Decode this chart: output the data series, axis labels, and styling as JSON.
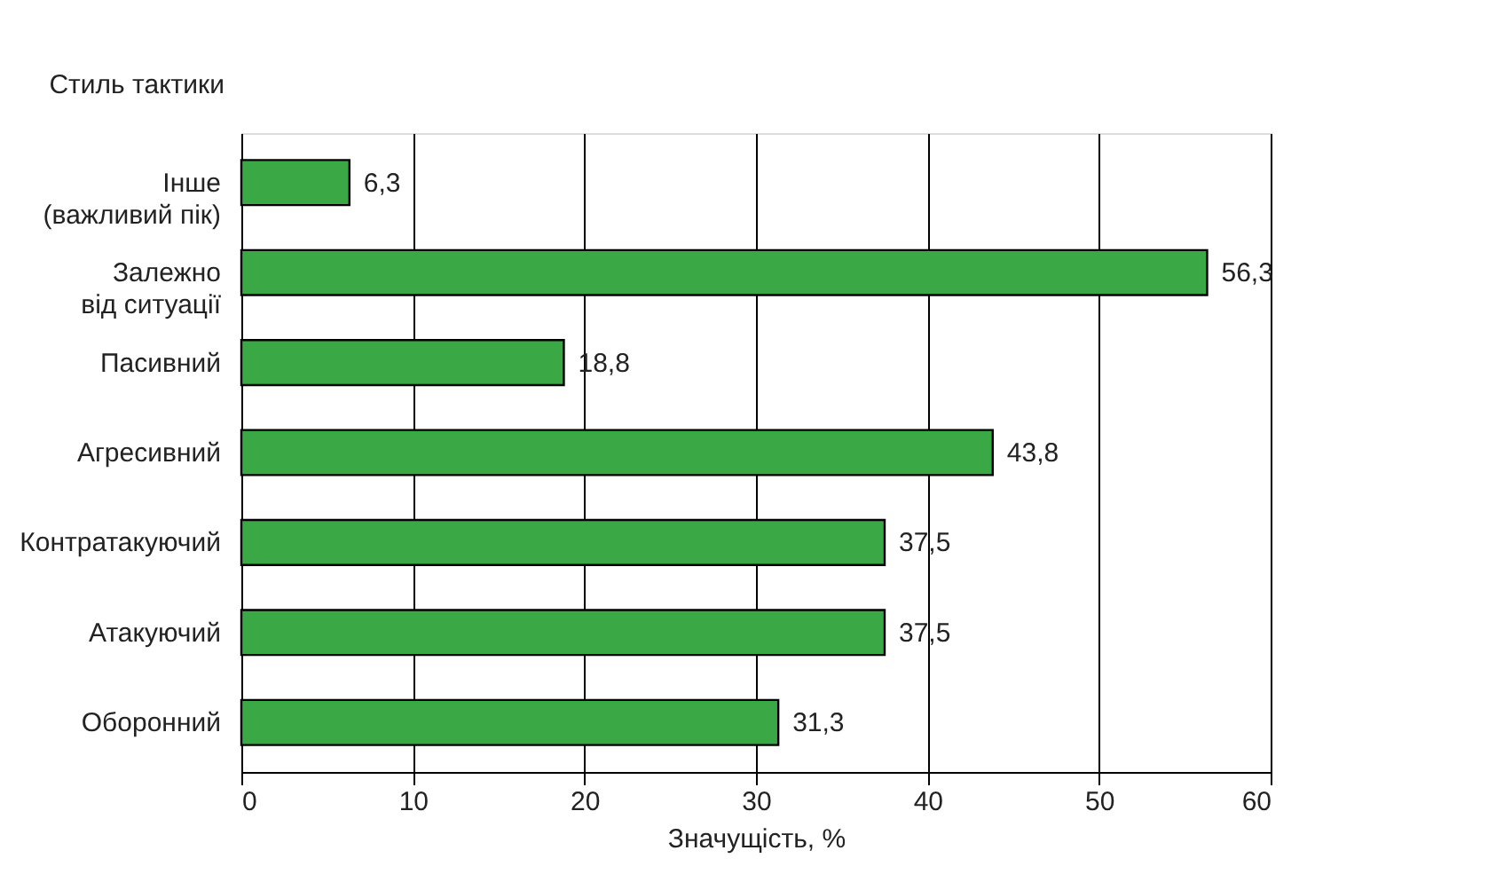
{
  "chart_data": {
    "type": "bar",
    "orientation": "horizontal",
    "ylabel": "Стиль тактики",
    "xlabel": "Значущість, %",
    "categories": [
      "Інше\n(важливий пік)",
      "Залежно\nвід ситуації",
      "Пасивний",
      "Агресивний",
      "Контратакуючий",
      "Атакуючий",
      "Оборонний"
    ],
    "values": [
      6.3,
      56.3,
      18.8,
      43.8,
      37.5,
      37.5,
      31.3
    ],
    "value_labels": [
      "6,3",
      "56,3",
      "18,8",
      "43,8",
      "37,5",
      "37,5",
      "31,3"
    ],
    "color": "#3aa845",
    "xlim": [
      0,
      60
    ],
    "xticks": [
      0,
      10,
      20,
      30,
      40,
      50,
      60
    ],
    "grid": "x"
  }
}
